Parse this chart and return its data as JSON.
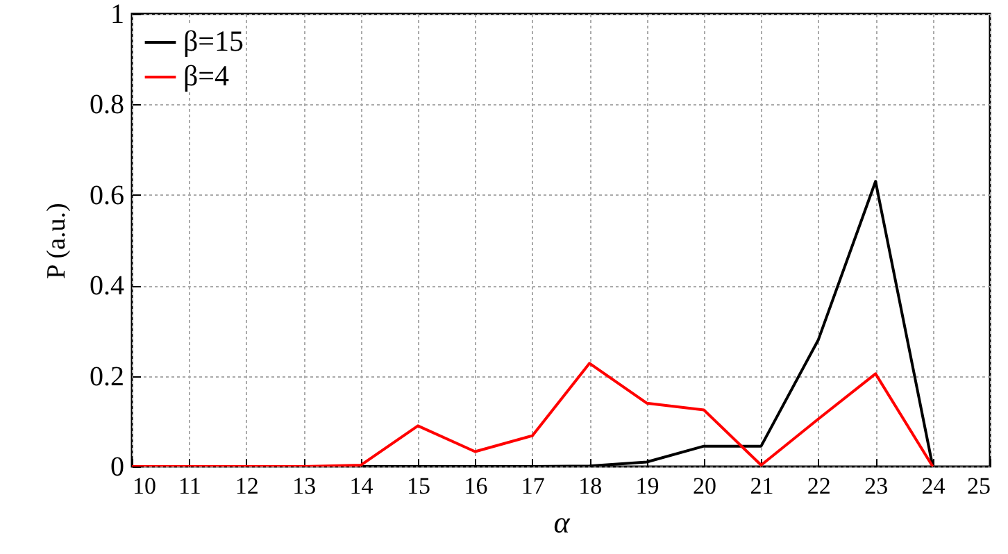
{
  "chart_data": {
    "type": "line",
    "xlabel": "α",
    "ylabel": "P (a.u.)",
    "x": [
      10,
      11,
      12,
      13,
      14,
      15,
      16,
      17,
      18,
      19,
      20,
      21,
      22,
      23,
      24
    ],
    "series": [
      {
        "name": "β=15",
        "color": "#000000",
        "values": [
          0,
          0,
          0,
          0,
          0,
          0,
          0,
          0,
          0.001,
          0.01,
          0.045,
          0.045,
          0.28,
          0.63,
          0
        ]
      },
      {
        "name": "β=4",
        "color": "#ff0000",
        "values": [
          0,
          0,
          0,
          0,
          0.003,
          0.09,
          0.033,
          0.068,
          0.228,
          0.14,
          0.125,
          0.003,
          0.105,
          0.205,
          0
        ]
      }
    ],
    "xlim": [
      10,
      25
    ],
    "xticks": [
      10,
      11,
      12,
      13,
      14,
      15,
      16,
      17,
      18,
      19,
      20,
      21,
      22,
      23,
      24,
      25
    ],
    "ylim": [
      0,
      1
    ],
    "yticks": [
      0,
      0.2,
      0.4,
      0.6,
      0.8,
      1
    ],
    "grid": true,
    "legend": "top left",
    "marker": "none",
    "line_style": "solid"
  }
}
